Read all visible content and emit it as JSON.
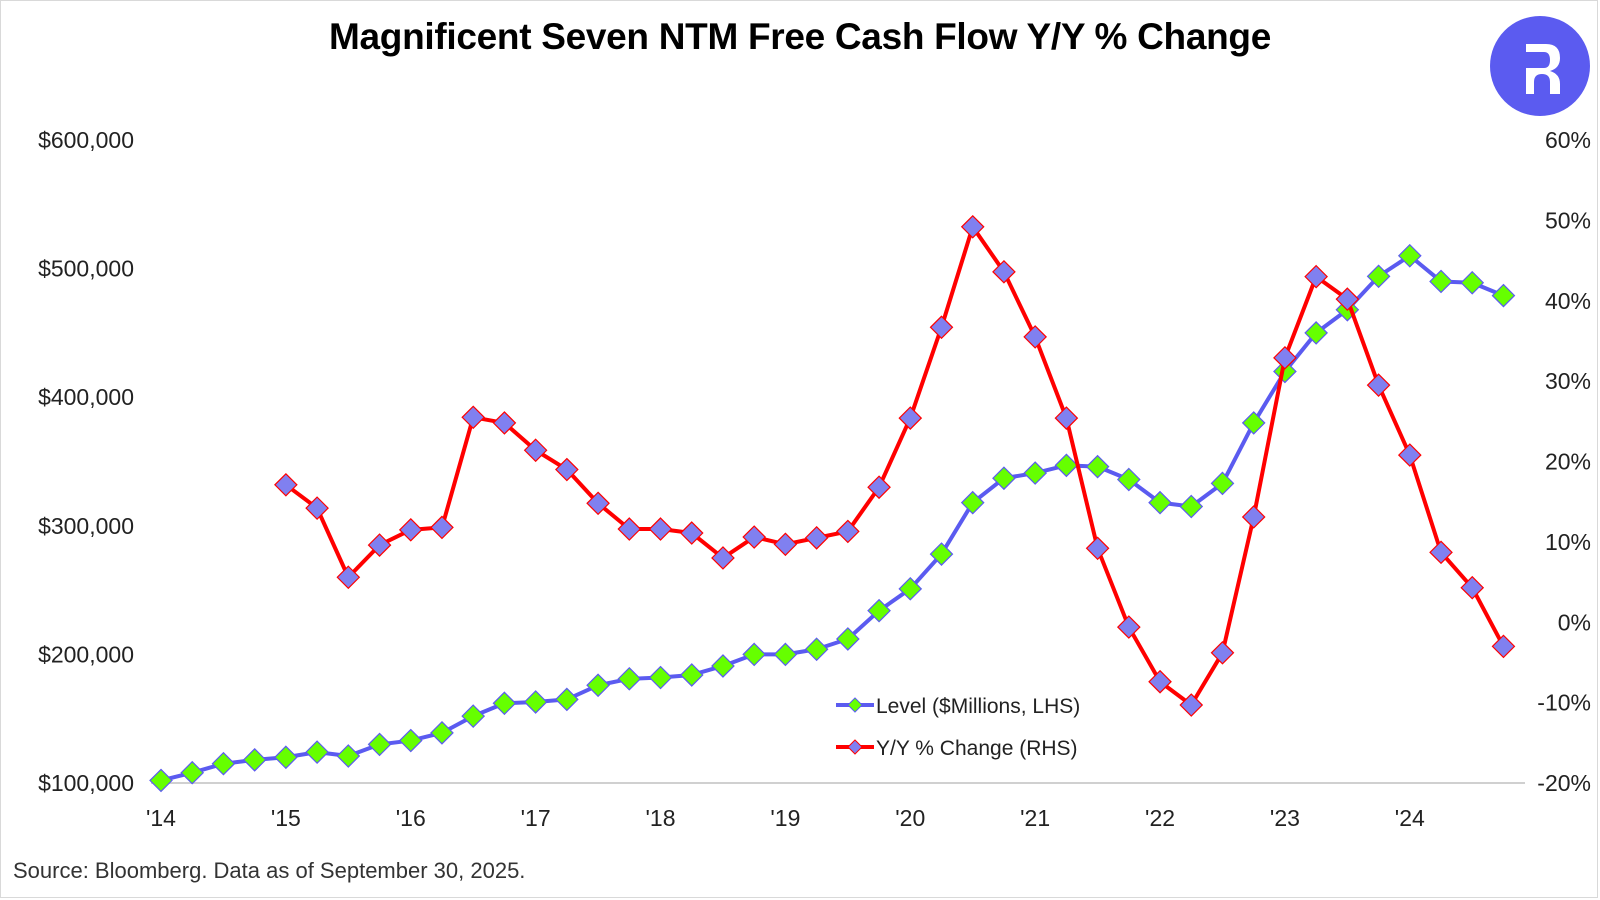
{
  "source_note": "Source: Bloomberg. Data as of September 30, 2025.",
  "logo": {
    "icon": "brand-r-logo-icon",
    "color": "#5b5bf0"
  },
  "chart_data": {
    "type": "line",
    "title": "Magnificent Seven NTM Free Cash Flow Y/Y % Change",
    "xlabel": "",
    "ylabel_left": "",
    "ylabel_right": "",
    "x_start": "2014 Q1",
    "x_frequency": "quarterly",
    "x_tick_labels": [
      "'14",
      "'15",
      "'16",
      "'17",
      "'18",
      "'19",
      "'20",
      "'21",
      "'22",
      "'23",
      "'24"
    ],
    "y_left": {
      "range": [
        100000,
        600000
      ],
      "ticks": [
        100000,
        200000,
        300000,
        400000,
        500000,
        600000
      ],
      "tick_labels": [
        "$100,000",
        "$200,000",
        "$300,000",
        "$400,000",
        "$500,000",
        "$600,000"
      ]
    },
    "y_right": {
      "range": [
        -20,
        60
      ],
      "ticks": [
        -20,
        -10,
        0,
        10,
        20,
        30,
        40,
        50,
        60
      ],
      "tick_labels": [
        "-20%",
        "-10%",
        "0%",
        "10%",
        "20%",
        "30%",
        "40%",
        "50%",
        "60%"
      ]
    },
    "grid": false,
    "legend_position": "bottom-center",
    "series": [
      {
        "name": "Level ($Millions, LHS)",
        "axis": "left",
        "line_color": "#5b5bf0",
        "marker_color": "#66ff00",
        "marker": "diamond",
        "start_index": 0,
        "values": [
          102000,
          108000,
          115000,
          118000,
          120000,
          124000,
          121000,
          130000,
          133000,
          139000,
          152000,
          162000,
          163000,
          165000,
          176000,
          181000,
          182000,
          184000,
          191000,
          200000,
          200000,
          204000,
          212000,
          234000,
          251000,
          278000,
          318000,
          337000,
          341000,
          347000,
          346000,
          336000,
          318000,
          315000,
          333000,
          380000,
          420000,
          450000,
          468000,
          494000,
          510000,
          490000,
          489000,
          479000
        ]
      },
      {
        "name": "Y/Y % Change (RHS)",
        "axis": "right",
        "line_color": "#ff0000",
        "marker_color": "#8080f0",
        "marker": "diamond",
        "start_index": 4,
        "values": [
          17.1,
          14.2,
          5.6,
          9.6,
          11.5,
          11.8,
          25.5,
          24.8,
          21.4,
          19.0,
          14.8,
          11.6,
          11.6,
          11.1,
          8.0,
          10.6,
          9.7,
          10.5,
          11.3,
          16.8,
          25.4,
          36.7,
          49.2,
          43.6,
          35.5,
          25.4,
          9.2,
          -0.6,
          -7.4,
          -10.3,
          -3.8,
          13.1,
          32.9,
          43.0,
          40.2,
          29.5,
          20.8,
          8.7,
          4.3,
          -3.0
        ]
      }
    ]
  }
}
